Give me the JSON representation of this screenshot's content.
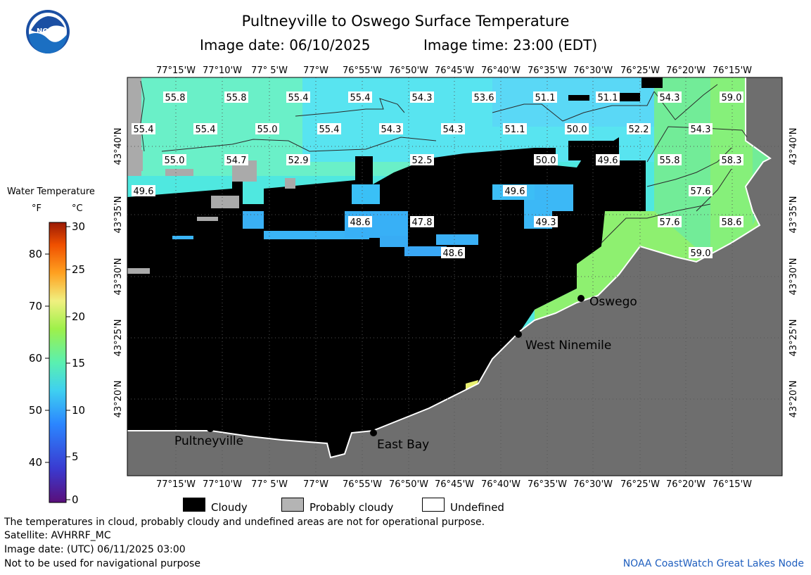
{
  "header": {
    "title": "Pultneyville to Oswego Surface Temperature",
    "image_date_label": "Image date: 06/10/2025",
    "image_time_label": "Image time: 23:00 (EDT)"
  },
  "logo": {
    "text": "NOAA"
  },
  "colorbar": {
    "title": "Water Temperature",
    "unit_f": "°F",
    "unit_c": "°C",
    "f_ticks": [
      "80",
      "70",
      "60",
      "50",
      "40"
    ],
    "c_ticks": [
      "30",
      "25",
      "20",
      "15",
      "10",
      "5",
      "0"
    ]
  },
  "axes": {
    "lon_labels": [
      "77°15'W",
      "77°10'W",
      "77° 5'W",
      "77°W",
      "76°55'W",
      "76°50'W",
      "76°45'W",
      "76°40'W",
      "76°35'W",
      "76°30'W",
      "76°25'W",
      "76°20'W",
      "76°15'W"
    ],
    "lat_labels": [
      "43°40'N",
      "43°35'N",
      "43°30'N",
      "43°25'N",
      "43°20'N"
    ]
  },
  "places": [
    "Oswego",
    "West Ninemile",
    "Pultneyville",
    "East Bay"
  ],
  "temperature_labels": [
    "55.8",
    "55.8",
    "55.4",
    "55.4",
    "54.3",
    "53.6",
    "51.1",
    "51.1",
    "54.3",
    "59.0",
    "55.4",
    "55.4",
    "55.0",
    "55.4",
    "54.3",
    "54.3",
    "51.1",
    "50.0",
    "52.2",
    "54.3",
    "55.0",
    "54.7",
    "52.9",
    "52.5",
    "50.0",
    "49.6",
    "55.8",
    "58.3",
    "49.6",
    "49.6",
    "57.6",
    "48.6",
    "47.8",
    "49.3",
    "57.6",
    "58.6",
    "48.6",
    "59.0"
  ],
  "legend": {
    "cloudy": "Cloudy",
    "probably_cloudy": "Probably cloudy",
    "undefined": "Undefined"
  },
  "footer": {
    "disclaimer": "The temperatures in cloud, probably cloudy and undefined areas are not for operational purpose.",
    "satellite": "Satellite: AVHRRF_MC",
    "utc_date": "Image date: (UTC) 06/11/2025  03:00",
    "nav_warning": "Not to be used for navigational purpose",
    "credit": "NOAA CoastWatch Great Lakes Node"
  },
  "colors": {
    "land": "#6e6e6e",
    "cloud": "#000000",
    "probably_cloudy": "#b4b4b4",
    "credit_link": "#1f5fbf"
  }
}
